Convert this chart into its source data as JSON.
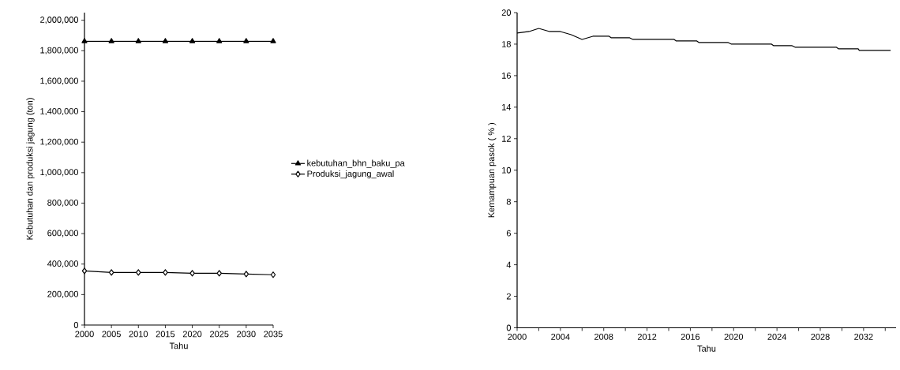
{
  "chart_data": [
    {
      "type": "line",
      "xlabel": "Tahu",
      "ylabel": "Kebutuhan dan produksi jagung (ton)",
      "x": [
        2000,
        2005,
        2010,
        2015,
        2020,
        2025,
        2030,
        2035
      ],
      "series": [
        {
          "name": "kebutuhan_bhn_baku_pa",
          "color": "#000000",
          "marker": "triangle",
          "values": [
            1862000,
            1862000,
            1862000,
            1862000,
            1862000,
            1862000,
            1862000,
            1862000
          ]
        },
        {
          "name": "Produksi_jagung_awal",
          "color": "#000000",
          "marker": "diamond",
          "values": [
            355000,
            345000,
            345000,
            345000,
            340000,
            340000,
            335000,
            330000
          ]
        }
      ],
      "xlim": [
        2000,
        2035
      ],
      "xticks": [
        2000,
        2005,
        2010,
        2015,
        2020,
        2025,
        2030,
        2035
      ],
      "ylim": [
        0,
        2050000
      ],
      "yticks": [
        {
          "value": 0,
          "label": "0"
        },
        {
          "value": 200000,
          "label": "200,000"
        },
        {
          "value": 400000,
          "label": "400,000"
        },
        {
          "value": 600000,
          "label": "600,000"
        },
        {
          "value": 800000,
          "label": "800,000"
        },
        {
          "value": 1000000,
          "label": "1,000,000"
        },
        {
          "value": 1200000,
          "label": "1,200,000"
        },
        {
          "value": 1400000,
          "label": "1,400,000"
        },
        {
          "value": 1600000,
          "label": "1,600,000"
        },
        {
          "value": 1800000,
          "label": "1,800,000"
        },
        {
          "value": 2000000,
          "label": "2,000,000"
        }
      ],
      "legend": "right",
      "line_style": "solid"
    },
    {
      "type": "line",
      "xlabel": "Tahu",
      "ylabel": "Kemampuan pasok ( % )",
      "x": [
        2000,
        2001.1,
        2002,
        2003,
        2004,
        2005,
        2006,
        2007,
        2008.5,
        2008.7,
        2010.4,
        2010.7,
        2014.5,
        2014.7,
        2016.6,
        2016.8,
        2019.5,
        2019.8,
        2023.5,
        2023.7,
        2025.4,
        2025.7,
        2029.5,
        2029.7,
        2031.5,
        2031.6,
        2034.5
      ],
      "series": [
        {
          "color": "#000000",
          "values": [
            18.7,
            18.8,
            19.0,
            18.8,
            18.8,
            18.6,
            18.3,
            18.5,
            18.5,
            18.4,
            18.4,
            18.3,
            18.3,
            18.2,
            18.2,
            18.1,
            18.1,
            18.0,
            18.0,
            17.9,
            17.9,
            17.8,
            17.8,
            17.7,
            17.7,
            17.6,
            17.6
          ]
        }
      ],
      "xlim": [
        2000,
        2035
      ],
      "xticks": [
        2000,
        {
          "value": 2002,
          "label": null
        },
        2004,
        {
          "value": 2006,
          "label": null
        },
        2008,
        {
          "value": 2010,
          "label": null
        },
        2012,
        {
          "value": 2014,
          "label": null
        },
        2016,
        {
          "value": 2018,
          "label": null
        },
        2020,
        {
          "value": 2022,
          "label": null
        },
        2024,
        {
          "value": 2026,
          "label": null
        },
        2028,
        {
          "value": 2030,
          "label": null
        },
        2032,
        {
          "value": 2034,
          "label": null
        }
      ],
      "ylim": [
        0,
        20
      ],
      "yticks": [
        0,
        2,
        4,
        6,
        8,
        10,
        12,
        14,
        16,
        18,
        20
      ],
      "line_style": "solid"
    }
  ]
}
